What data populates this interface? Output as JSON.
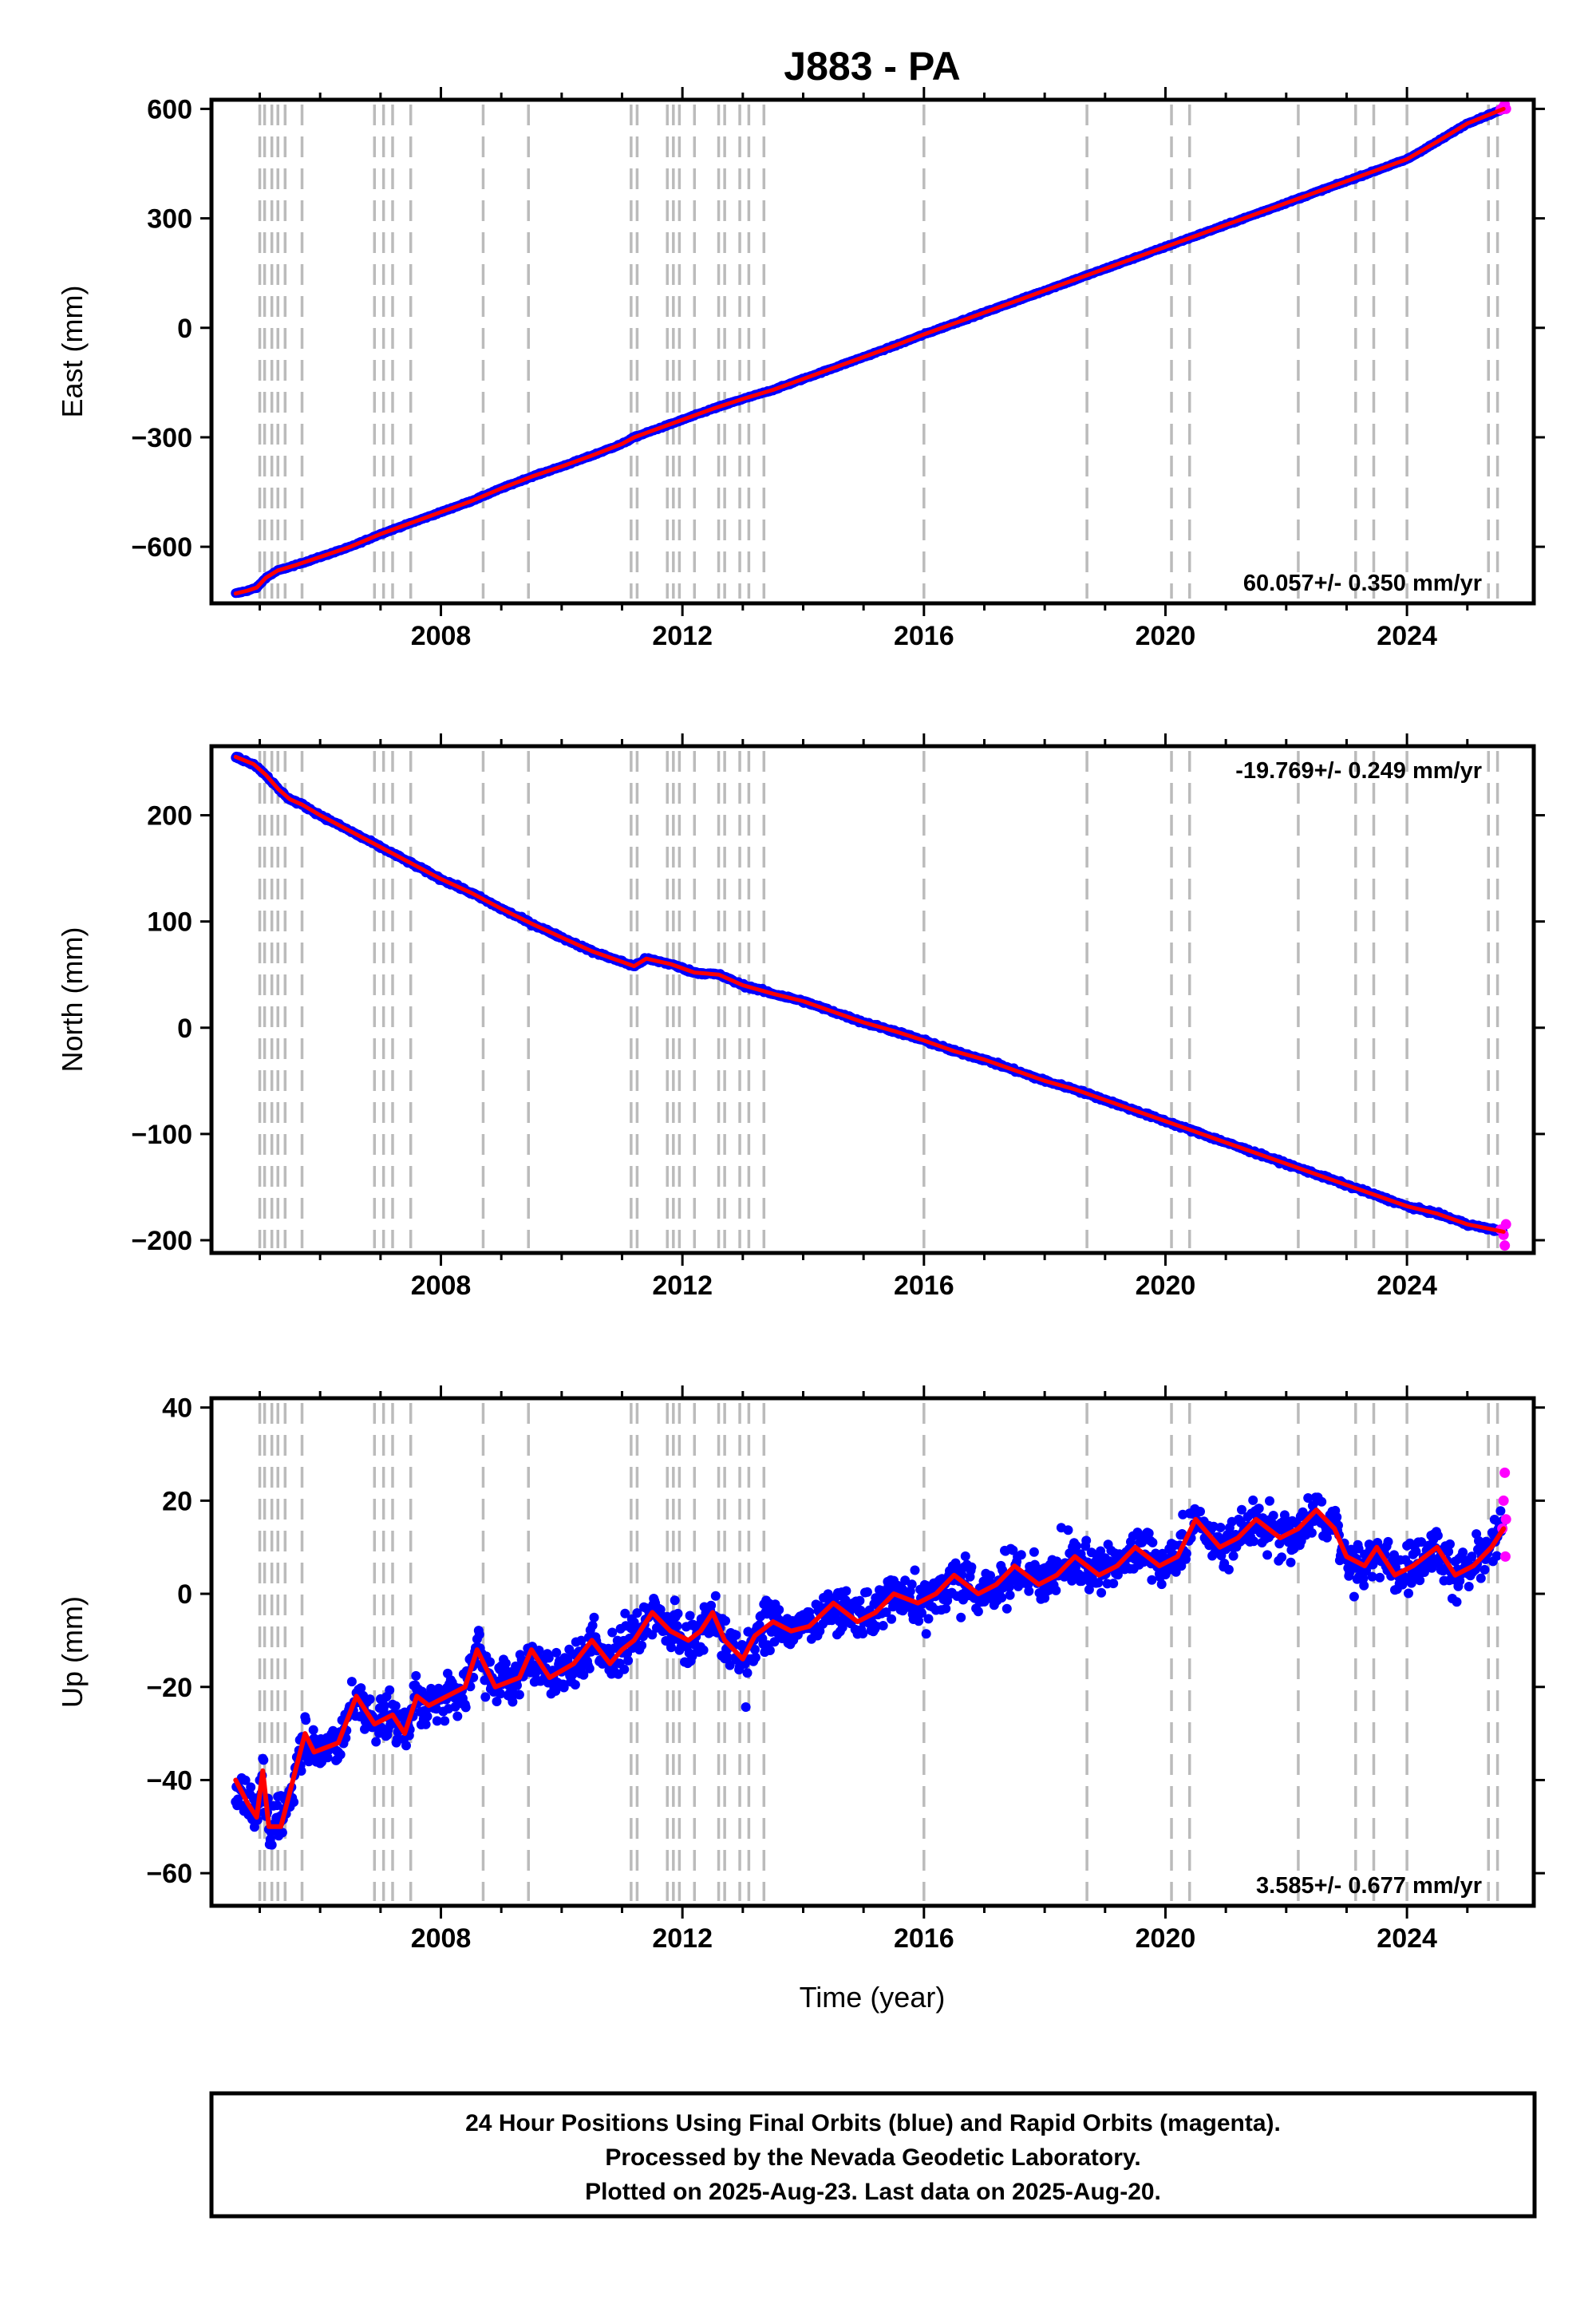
{
  "chart_data": {
    "type": "scatter",
    "title": "J883 - PA",
    "xlabel": "Time (year)",
    "xlim": [
      2004.2,
      2026.1
    ],
    "x_ticks": [
      2008,
      2012,
      2016,
      2020,
      2024
    ],
    "event_lines": [
      2005.0,
      2005.08,
      2005.2,
      2005.3,
      2005.42,
      2005.7,
      2006.9,
      2007.05,
      2007.2,
      2007.5,
      2008.7,
      2009.45,
      2011.15,
      2011.25,
      2011.75,
      2011.85,
      2011.95,
      2012.2,
      2012.6,
      2012.7,
      2012.95,
      2013.1,
      2013.35,
      2016.0,
      2018.7,
      2020.1,
      2020.4,
      2022.2,
      2023.15,
      2023.45,
      2024.0,
      2025.35,
      2025.5
    ],
    "series_legend": "24 Hour Positions Using Final Orbits (blue) and Rapid Orbits (magenta).",
    "colors": {
      "final_orbits": "#0000ff",
      "rapid_orbits": "#ff00ff",
      "model": "#ff0000",
      "event_line": "#bbbbbb"
    },
    "panels": [
      {
        "id": "east",
        "ylabel": "East (mm)",
        "ylim": [
          -755,
          625
        ],
        "y_ticks": [
          600,
          300,
          0,
          -300,
          -600
        ],
        "y_tick_labels": [
          "600",
          "300",
          "0",
          "−300",
          "−600"
        ],
        "rate": "60.057+/- 0.350 mm/yr",
        "rate_position": "bottom-right",
        "trend_start": [
          2004.6,
          -728
        ],
        "trend_end": [
          2025.6,
          600
        ],
        "scatter_mm": 2,
        "model_points": [
          [
            2004.6,
            -728
          ],
          [
            2004.8,
            -720
          ],
          [
            2004.95,
            -712
          ],
          [
            2005.1,
            -685
          ],
          [
            2005.3,
            -665
          ],
          [
            2005.6,
            -650
          ],
          [
            2006.0,
            -628
          ],
          [
            2006.5,
            -600
          ],
          [
            2007.0,
            -565
          ],
          [
            2007.5,
            -535
          ],
          [
            2008.0,
            -505
          ],
          [
            2008.5,
            -475
          ],
          [
            2009.0,
            -440
          ],
          [
            2009.5,
            -408
          ],
          [
            2010.0,
            -380
          ],
          [
            2010.5,
            -350
          ],
          [
            2011.0,
            -318
          ],
          [
            2011.2,
            -300
          ],
          [
            2011.5,
            -282
          ],
          [
            2012.0,
            -252
          ],
          [
            2012.5,
            -222
          ],
          [
            2013.0,
            -195
          ],
          [
            2013.5,
            -170
          ],
          [
            2014.0,
            -140
          ],
          [
            2014.5,
            -110
          ],
          [
            2015.0,
            -80
          ],
          [
            2015.5,
            -50
          ],
          [
            2016.0,
            -18
          ],
          [
            2016.5,
            12
          ],
          [
            2017.0,
            42
          ],
          [
            2017.5,
            72
          ],
          [
            2018.0,
            102
          ],
          [
            2018.5,
            132
          ],
          [
            2019.0,
            162
          ],
          [
            2019.5,
            192
          ],
          [
            2020.0,
            222
          ],
          [
            2020.5,
            252
          ],
          [
            2021.0,
            282
          ],
          [
            2021.5,
            312
          ],
          [
            2022.0,
            342
          ],
          [
            2022.5,
            372
          ],
          [
            2023.0,
            402
          ],
          [
            2023.5,
            432
          ],
          [
            2024.0,
            462
          ],
          [
            2024.5,
            510
          ],
          [
            2025.0,
            560
          ],
          [
            2025.6,
            600
          ]
        ],
        "rapid_points": [
          [
            2025.55,
            598
          ],
          [
            2025.6,
            606
          ],
          [
            2025.62,
            612
          ],
          [
            2025.64,
            600
          ]
        ]
      },
      {
        "id": "north",
        "ylabel": "North (mm)",
        "ylim": [
          -212,
          265
        ],
        "y_ticks": [
          200,
          100,
          0,
          -100,
          -200
        ],
        "y_tick_labels": [
          "200",
          "100",
          "0",
          "−100",
          "−200"
        ],
        "rate": "-19.769+/- 0.249 mm/yr",
        "rate_position": "top-right",
        "trend_start": [
          2004.6,
          255
        ],
        "trend_end": [
          2025.6,
          -192
        ],
        "scatter_mm": 1.5,
        "model_points": [
          [
            2004.6,
            255
          ],
          [
            2004.9,
            248
          ],
          [
            2005.1,
            238
          ],
          [
            2005.3,
            225
          ],
          [
            2005.5,
            215
          ],
          [
            2005.7,
            210
          ],
          [
            2006.0,
            200
          ],
          [
            2006.5,
            185
          ],
          [
            2007.0,
            170
          ],
          [
            2007.5,
            155
          ],
          [
            2008.0,
            140
          ],
          [
            2008.5,
            127
          ],
          [
            2009.0,
            112
          ],
          [
            2009.5,
            98
          ],
          [
            2010.0,
            85
          ],
          [
            2010.5,
            72
          ],
          [
            2011.0,
            62
          ],
          [
            2011.2,
            58
          ],
          [
            2011.4,
            65
          ],
          [
            2011.8,
            60
          ],
          [
            2012.2,
            52
          ],
          [
            2012.6,
            50
          ],
          [
            2013.0,
            40
          ],
          [
            2013.5,
            32
          ],
          [
            2014.0,
            25
          ],
          [
            2014.5,
            15
          ],
          [
            2015.0,
            5
          ],
          [
            2015.5,
            -3
          ],
          [
            2016.0,
            -12
          ],
          [
            2016.5,
            -22
          ],
          [
            2017.0,
            -30
          ],
          [
            2017.5,
            -40
          ],
          [
            2018.0,
            -50
          ],
          [
            2018.5,
            -58
          ],
          [
            2019.0,
            -68
          ],
          [
            2019.5,
            -78
          ],
          [
            2020.0,
            -88
          ],
          [
            2020.5,
            -98
          ],
          [
            2021.0,
            -108
          ],
          [
            2021.5,
            -118
          ],
          [
            2022.0,
            -128
          ],
          [
            2022.5,
            -138
          ],
          [
            2023.0,
            -148
          ],
          [
            2023.5,
            -158
          ],
          [
            2024.0,
            -168
          ],
          [
            2024.5,
            -175
          ],
          [
            2025.0,
            -185
          ],
          [
            2025.6,
            -192
          ]
        ],
        "rapid_points": [
          [
            2025.55,
            -190
          ],
          [
            2025.6,
            -195
          ],
          [
            2025.62,
            -205
          ],
          [
            2025.64,
            -185
          ]
        ]
      },
      {
        "id": "up",
        "ylabel": "Up (mm)",
        "ylim": [
          -67,
          42
        ],
        "y_ticks": [
          40,
          20,
          0,
          -20,
          -40,
          -60
        ],
        "y_tick_labels": [
          "40",
          "20",
          "0",
          "−20",
          "−40",
          "−60"
        ],
        "rate": "3.585+/- 0.677 mm/yr",
        "rate_position": "bottom-right",
        "scatter_mm": 5,
        "model_points": [
          [
            2004.6,
            -40
          ],
          [
            2004.8,
            -45
          ],
          [
            2004.95,
            -48
          ],
          [
            2005.05,
            -38
          ],
          [
            2005.15,
            -50
          ],
          [
            2005.35,
            -50
          ],
          [
            2005.55,
            -40
          ],
          [
            2005.75,
            -30
          ],
          [
            2005.9,
            -34
          ],
          [
            2006.3,
            -32
          ],
          [
            2006.6,
            -22
          ],
          [
            2006.9,
            -28
          ],
          [
            2007.2,
            -26
          ],
          [
            2007.4,
            -30
          ],
          [
            2007.6,
            -22
          ],
          [
            2007.8,
            -24
          ],
          [
            2008.1,
            -22
          ],
          [
            2008.4,
            -20
          ],
          [
            2008.6,
            -12
          ],
          [
            2008.9,
            -20
          ],
          [
            2009.3,
            -18
          ],
          [
            2009.5,
            -12
          ],
          [
            2009.8,
            -18
          ],
          [
            2010.2,
            -15
          ],
          [
            2010.5,
            -10
          ],
          [
            2010.8,
            -15
          ],
          [
            2011.0,
            -12
          ],
          [
            2011.2,
            -10
          ],
          [
            2011.5,
            -4
          ],
          [
            2011.8,
            -8
          ],
          [
            2012.1,
            -10
          ],
          [
            2012.3,
            -8
          ],
          [
            2012.5,
            -4
          ],
          [
            2012.7,
            -10
          ],
          [
            2012.85,
            -12
          ],
          [
            2013.0,
            -14
          ],
          [
            2013.2,
            -9
          ],
          [
            2013.5,
            -6
          ],
          [
            2013.8,
            -8
          ],
          [
            2014.1,
            -7
          ],
          [
            2014.5,
            -2
          ],
          [
            2014.9,
            -6
          ],
          [
            2015.2,
            -4
          ],
          [
            2015.5,
            0
          ],
          [
            2015.9,
            -2
          ],
          [
            2016.2,
            0
          ],
          [
            2016.5,
            4
          ],
          [
            2016.9,
            0
          ],
          [
            2017.2,
            2
          ],
          [
            2017.5,
            6
          ],
          [
            2017.9,
            2
          ],
          [
            2018.2,
            4
          ],
          [
            2018.5,
            8
          ],
          [
            2018.9,
            4
          ],
          [
            2019.2,
            6
          ],
          [
            2019.5,
            10
          ],
          [
            2019.9,
            6
          ],
          [
            2020.2,
            8
          ],
          [
            2020.5,
            16
          ],
          [
            2020.9,
            10
          ],
          [
            2021.2,
            12
          ],
          [
            2021.5,
            16
          ],
          [
            2021.9,
            12
          ],
          [
            2022.2,
            14
          ],
          [
            2022.5,
            18
          ],
          [
            2022.8,
            14
          ],
          [
            2023.0,
            8
          ],
          [
            2023.3,
            6
          ],
          [
            2023.5,
            10
          ],
          [
            2023.8,
            4
          ],
          [
            2024.1,
            6
          ],
          [
            2024.5,
            10
          ],
          [
            2024.8,
            4
          ],
          [
            2025.1,
            6
          ],
          [
            2025.4,
            10
          ],
          [
            2025.6,
            14
          ]
        ],
        "rapid_points": [
          [
            2025.58,
            14
          ],
          [
            2025.6,
            20
          ],
          [
            2025.62,
            26
          ],
          [
            2025.63,
            8
          ],
          [
            2025.64,
            16
          ]
        ]
      }
    ],
    "footer_lines": [
      "24 Hour Positions Using Final Orbits (blue) and Rapid Orbits (magenta).",
      "Processed by the Nevada Geodetic Laboratory.",
      "Plotted on 2025-Aug-23. Last data on 2025-Aug-20."
    ]
  }
}
